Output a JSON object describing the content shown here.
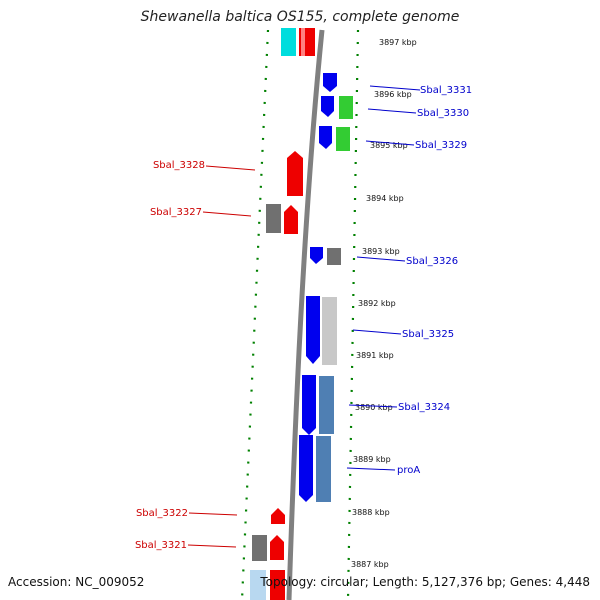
{
  "title": "Shewanella baltica OS155, complete genome",
  "footer": {
    "accession": "Accession: NC_009052",
    "summary": "Topology: circular; Length: 5,127,376 bp; Genes: 4,448"
  },
  "colors": {
    "forward_cds": "#0000ee",
    "reverse_cds": "#ee0000",
    "backbone": "#808080",
    "tick": "#008000",
    "label_forward": "#0000cc",
    "label_reverse": "#cc0000"
  },
  "ticks": [
    {
      "label": "3897 kbp"
    },
    {
      "label": "3896 kbp"
    },
    {
      "label": "3895 kbp"
    },
    {
      "label": "3894 kbp"
    },
    {
      "label": "3893 kbp"
    },
    {
      "label": "3892 kbp"
    },
    {
      "label": "3891 kbp"
    },
    {
      "label": "3890 kbp"
    },
    {
      "label": "3889 kbp"
    },
    {
      "label": "3888 kbp"
    },
    {
      "label": "3887 kbp"
    }
  ],
  "gene_labels": [
    {
      "name": "Sbal_3331",
      "strand": "forward"
    },
    {
      "name": "Sbal_3330",
      "strand": "forward"
    },
    {
      "name": "Sbal_3329",
      "strand": "forward"
    },
    {
      "name": "Sbal_3328",
      "strand": "reverse"
    },
    {
      "name": "Sbal_3327",
      "strand": "reverse"
    },
    {
      "name": "Sbal_3326",
      "strand": "forward"
    },
    {
      "name": "Sbal_3325",
      "strand": "forward"
    },
    {
      "name": "Sbal_3324",
      "strand": "forward"
    },
    {
      "name": "proA",
      "strand": "forward"
    },
    {
      "name": "Sbal_3322",
      "strand": "reverse"
    },
    {
      "name": "Sbal_3321",
      "strand": "reverse"
    }
  ]
}
